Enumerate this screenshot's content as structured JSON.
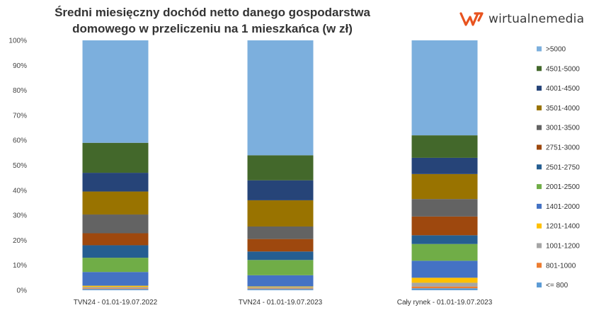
{
  "header": {
    "title_line1": "Średni miesięczny dochód netto danego gospodarstwa",
    "title_line2": "domowego w przeliczeniu na 1 mieszkańca (w zł)",
    "logo_text": "wirtualnemedia",
    "logo_color": "#e8531f"
  },
  "chart_data": {
    "type": "bar",
    "stacked": true,
    "percent": true,
    "title": "Średni miesięczny dochód netto danego gospodarstwa domowego w przeliczeniu na 1 mieszkańca (w zł)",
    "ylim": [
      0,
      100
    ],
    "yticks": [
      "0%",
      "10%",
      "20%",
      "30%",
      "40%",
      "50%",
      "60%",
      "70%",
      "80%",
      "90%",
      "100%"
    ],
    "grid": false,
    "legend_position": "right",
    "categories": [
      "TVN24 - 01.01-19.07.2022",
      "TVN24 - 01.01-19.07.2023",
      "Cały rynek - 01.01-19.07.2023"
    ],
    "series": [
      {
        "name": "<= 800",
        "color": "#5b9bd5",
        "values": [
          0.5,
          0.5,
          0.8
        ]
      },
      {
        "name": "801-1000",
        "color": "#ed7d31",
        "values": [
          0.3,
          0.2,
          0.7
        ]
      },
      {
        "name": "1001-1200",
        "color": "#a5a5a5",
        "values": [
          0.5,
          0.5,
          1.5
        ]
      },
      {
        "name": "1201-1400",
        "color": "#ffc000",
        "values": [
          0.5,
          0.3,
          2.0
        ]
      },
      {
        "name": "1401-2000",
        "color": "#4472c4",
        "values": [
          5.5,
          4.5,
          6.8
        ]
      },
      {
        "name": "2001-2500",
        "color": "#70ad47",
        "values": [
          5.7,
          6.1,
          6.7
        ]
      },
      {
        "name": "2501-2750",
        "color": "#255e91",
        "values": [
          5.0,
          3.4,
          3.5
        ]
      },
      {
        "name": "2751-3000",
        "color": "#9e480e",
        "values": [
          4.8,
          5.0,
          7.5
        ]
      },
      {
        "name": "3001-3500",
        "color": "#636363",
        "values": [
          7.5,
          5.0,
          7.0
        ]
      },
      {
        "name": "3501-4000",
        "color": "#997300",
        "values": [
          9.2,
          10.5,
          10.0
        ]
      },
      {
        "name": "4001-4500",
        "color": "#264478",
        "values": [
          7.5,
          8.0,
          6.5
        ]
      },
      {
        "name": "4501-5000",
        "color": "#43682b",
        "values": [
          12.0,
          10.0,
          9.0
        ]
      },
      {
        "name": ">5000",
        "color": "#7cafdd",
        "values": [
          41.0,
          46.0,
          38.0
        ]
      }
    ]
  }
}
